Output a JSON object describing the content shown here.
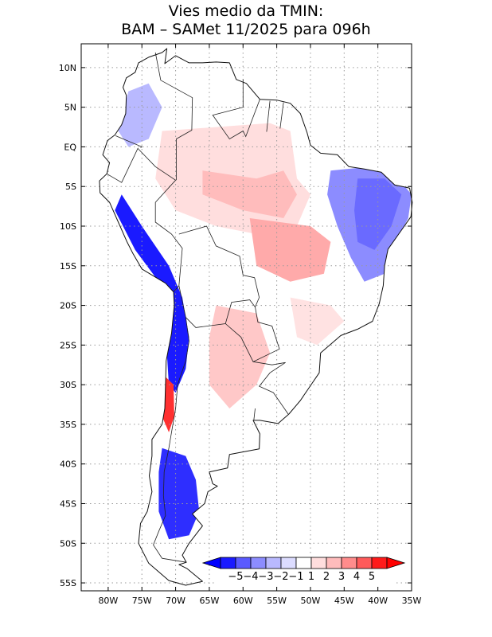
{
  "title": {
    "line1": "Vies medio da TMIN:",
    "line2": "BAM – SAMet 11/2025  para 096h"
  },
  "map": {
    "lon_range": [
      -84,
      -35
    ],
    "lat_range": [
      -56,
      13
    ],
    "x_ticks": [
      {
        "lon": -80,
        "label": "80W"
      },
      {
        "lon": -75,
        "label": "75W"
      },
      {
        "lon": -70,
        "label": "70W"
      },
      {
        "lon": -65,
        "label": "65W"
      },
      {
        "lon": -60,
        "label": "60W"
      },
      {
        "lon": -55,
        "label": "55W"
      },
      {
        "lon": -50,
        "label": "50W"
      },
      {
        "lon": -45,
        "label": "45W"
      },
      {
        "lon": -40,
        "label": "40W"
      },
      {
        "lon": -35,
        "label": "35W"
      }
    ],
    "y_ticks": [
      {
        "lat": 10,
        "label": "10N"
      },
      {
        "lat": 5,
        "label": "5N"
      },
      {
        "lat": 0,
        "label": "EQ"
      },
      {
        "lat": -5,
        "label": "5S"
      },
      {
        "lat": -10,
        "label": "10S"
      },
      {
        "lat": -15,
        "label": "15S"
      },
      {
        "lat": -20,
        "label": "20S"
      },
      {
        "lat": -25,
        "label": "25S"
      },
      {
        "lat": -30,
        "label": "30S"
      },
      {
        "lat": -35,
        "label": "35S"
      },
      {
        "lat": -40,
        "label": "40S"
      },
      {
        "lat": -45,
        "label": "45S"
      },
      {
        "lat": -50,
        "label": "50S"
      },
      {
        "lat": -55,
        "label": "55S"
      }
    ],
    "coastline": [
      [
        -77.3,
        8.7
      ],
      [
        -76.0,
        9.4
      ],
      [
        -75.5,
        10.6
      ],
      [
        -74.0,
        11.3
      ],
      [
        -72.0,
        11.9
      ],
      [
        -71.3,
        12.4
      ],
      [
        -71.6,
        10.5
      ],
      [
        -70.0,
        11.5
      ],
      [
        -68.0,
        10.6
      ],
      [
        -66.0,
        10.6
      ],
      [
        -64.0,
        10.7
      ],
      [
        -62.0,
        10.6
      ],
      [
        -61.0,
        8.5
      ],
      [
        -59.5,
        8.0
      ],
      [
        -57.5,
        6.0
      ],
      [
        -55.0,
        5.9
      ],
      [
        -53.0,
        5.5
      ],
      [
        -51.5,
        4.2
      ],
      [
        -50.5,
        1.8
      ],
      [
        -50.0,
        0.2
      ],
      [
        -48.5,
        -0.8
      ],
      [
        -46.0,
        -1.0
      ],
      [
        -44.3,
        -2.5
      ],
      [
        -42.0,
        -2.8
      ],
      [
        -39.5,
        -3.2
      ],
      [
        -37.5,
        -4.8
      ],
      [
        -35.3,
        -5.2
      ],
      [
        -34.9,
        -7.0
      ],
      [
        -35.1,
        -8.8
      ],
      [
        -36.5,
        -10.5
      ],
      [
        -38.5,
        -12.9
      ],
      [
        -39.0,
        -15.0
      ],
      [
        -39.2,
        -17.5
      ],
      [
        -39.8,
        -19.8
      ],
      [
        -40.8,
        -22.0
      ],
      [
        -43.0,
        -23.0
      ],
      [
        -45.5,
        -23.8
      ],
      [
        -48.5,
        -26.0
      ],
      [
        -48.7,
        -28.5
      ],
      [
        -50.3,
        -30.5
      ],
      [
        -51.5,
        -32.0
      ],
      [
        -53.2,
        -33.7
      ],
      [
        -54.8,
        -34.9
      ],
      [
        -57.5,
        -34.5
      ],
      [
        -58.5,
        -34.5
      ],
      [
        -57.5,
        -36.2
      ],
      [
        -57.6,
        -38.1
      ],
      [
        -62.0,
        -38.8
      ],
      [
        -62.3,
        -40.5
      ],
      [
        -65.0,
        -41.0
      ],
      [
        -64.5,
        -42.5
      ],
      [
        -63.8,
        -42.8
      ],
      [
        -65.2,
        -43.5
      ],
      [
        -65.7,
        -45.0
      ],
      [
        -67.5,
        -46.3
      ],
      [
        -66.0,
        -47.8
      ],
      [
        -68.0,
        -50.0
      ],
      [
        -69.0,
        -51.5
      ],
      [
        -68.4,
        -52.4
      ],
      [
        -69.5,
        -52.7
      ],
      [
        -68.3,
        -53.2
      ],
      [
        -66.0,
        -54.8
      ],
      [
        -68.5,
        -55.3
      ],
      [
        -71.0,
        -54.7
      ],
      [
        -74.0,
        -52.5
      ],
      [
        -75.5,
        -50.0
      ],
      [
        -75.2,
        -47.5
      ],
      [
        -74.2,
        -46.0
      ],
      [
        -73.5,
        -43.5
      ],
      [
        -73.9,
        -41.5
      ],
      [
        -73.5,
        -39.0
      ],
      [
        -73.5,
        -36.9
      ],
      [
        -72.0,
        -35.0
      ],
      [
        -71.6,
        -33.0
      ],
      [
        -71.5,
        -30.0
      ],
      [
        -71.4,
        -27.0
      ],
      [
        -70.6,
        -23.5
      ],
      [
        -70.2,
        -20.0
      ],
      [
        -70.3,
        -18.3
      ],
      [
        -71.5,
        -17.2
      ],
      [
        -75.0,
        -15.4
      ],
      [
        -76.3,
        -13.5
      ],
      [
        -77.2,
        -12.0
      ],
      [
        -78.5,
        -9.5
      ],
      [
        -79.8,
        -7.0
      ],
      [
        -81.2,
        -5.8
      ],
      [
        -81.3,
        -4.3
      ],
      [
        -80.2,
        -3.4
      ],
      [
        -79.8,
        -2.0
      ],
      [
        -80.8,
        -1.0
      ],
      [
        -80.1,
        0.8
      ],
      [
        -79.0,
        1.5
      ],
      [
        -78.0,
        2.8
      ],
      [
        -77.4,
        4.2
      ],
      [
        -77.3,
        6.5
      ],
      [
        -77.8,
        7.5
      ],
      [
        -77.3,
        8.7
      ]
    ],
    "borders": [
      [
        [
          -73.0,
          11.9
        ],
        [
          -72.2,
          8.4
        ],
        [
          -67.5,
          6.2
        ],
        [
          -67.6,
          2.1
        ],
        [
          -69.9,
          1.0
        ],
        [
          -69.9,
          -4.2
        ]
      ],
      [
        [
          -60.0,
          8.5
        ],
        [
          -60.0,
          5.0
        ],
        [
          -64.5,
          4.0
        ],
        [
          -62.0,
          1.0
        ],
        [
          -60.0,
          2.0
        ],
        [
          -59.6,
          1.3
        ],
        [
          -57.5,
          6.0
        ]
      ],
      [
        [
          -56.5,
          1.9
        ],
        [
          -56.0,
          5.8
        ]
      ],
      [
        [
          -54.5,
          2.3
        ],
        [
          -54.0,
          5.6
        ]
      ],
      [
        [
          -78.9,
          1.4
        ],
        [
          -75.0,
          0.0
        ],
        [
          -75.2,
          -0.1
        ]
      ],
      [
        [
          -80.2,
          -3.4
        ],
        [
          -78.0,
          -4.5
        ],
        [
          -75.6,
          -0.2
        ],
        [
          -73.0,
          -2.5
        ],
        [
          -70.0,
          -4.2
        ]
      ],
      [
        [
          -70.0,
          -4.2
        ],
        [
          -73.0,
          -7.0
        ],
        [
          -73.0,
          -9.5
        ],
        [
          -70.6,
          -11.0
        ],
        [
          -69.0,
          -12.8
        ],
        [
          -69.5,
          -17.5
        ],
        [
          -70.3,
          -18.3
        ]
      ],
      [
        [
          -69.5,
          -11.0
        ],
        [
          -65.4,
          -10.0
        ],
        [
          -64.0,
          -12.5
        ],
        [
          -60.5,
          -13.8
        ],
        [
          -60.0,
          -16.2
        ],
        [
          -58.3,
          -16.5
        ],
        [
          -57.6,
          -19.0
        ],
        [
          -58.2,
          -20.2
        ]
      ],
      [
        [
          -69.5,
          -17.5
        ],
        [
          -68.5,
          -21.5
        ],
        [
          -67.0,
          -22.8
        ],
        [
          -62.6,
          -22.3
        ],
        [
          -61.7,
          -19.6
        ],
        [
          -59.0,
          -19.3
        ],
        [
          -58.2,
          -20.2
        ]
      ],
      [
        [
          -58.2,
          -20.2
        ],
        [
          -57.8,
          -22.1
        ],
        [
          -55.7,
          -22.6
        ],
        [
          -54.6,
          -25.5
        ],
        [
          -58.5,
          -27.1
        ],
        [
          -60.3,
          -24.0
        ],
        [
          -62.6,
          -22.3
        ]
      ],
      [
        [
          -68.5,
          -21.5
        ],
        [
          -68.0,
          -24.5
        ],
        [
          -68.5,
          -27.0
        ],
        [
          -69.7,
          -30.0
        ],
        [
          -70.0,
          -33.0
        ],
        [
          -70.5,
          -35.5
        ],
        [
          -71.0,
          -38.0
        ],
        [
          -71.7,
          -41.0
        ],
        [
          -71.8,
          -44.0
        ],
        [
          -71.5,
          -46.5
        ],
        [
          -72.5,
          -48.5
        ],
        [
          -73.3,
          -50.2
        ],
        [
          -72.0,
          -51.9
        ],
        [
          -68.4,
          -52.4
        ]
      ],
      [
        [
          -53.7,
          -27.2
        ],
        [
          -56.0,
          -28.5
        ],
        [
          -57.6,
          -30.2
        ],
        [
          -55.5,
          -31.0
        ],
        [
          -53.3,
          -33.7
        ]
      ],
      [
        [
          -58.5,
          -27.1
        ],
        [
          -55.7,
          -27.5
        ],
        [
          -53.7,
          -27.2
        ]
      ],
      [
        [
          -58.2,
          -33.0
        ],
        [
          -58.4,
          -34.5
        ]
      ]
    ]
  },
  "colorbar": {
    "labels": [
      "−5",
      "−4",
      "−3",
      "−2",
      "−1",
      "1",
      "2",
      "3",
      "4",
      "5"
    ],
    "colors": [
      "#1a1aff",
      "#5a5aff",
      "#8c8cff",
      "#b9b9ff",
      "#dcdcff",
      "#ffffff",
      "#ffdede",
      "#ffbcbc",
      "#ff8c8c",
      "#ff5a5a",
      "#ff1a1a"
    ],
    "arrow_left_color": "#0000ff",
    "arrow_right_color": "#ff0000"
  },
  "bias_regions": [
    {
      "name": "amazon-warm",
      "value": 1.5,
      "color": "#ffdede",
      "polygon": [
        [
          -72,
          2
        ],
        [
          -56,
          3
        ],
        [
          -53,
          2
        ],
        [
          -52,
          -4
        ],
        [
          -50,
          -6
        ],
        [
          -52,
          -10
        ],
        [
          -58,
          -11
        ],
        [
          -64,
          -10
        ],
        [
          -70,
          -8
        ],
        [
          -73,
          -4
        ],
        [
          -72,
          2
        ]
      ]
    },
    {
      "name": "central-brazil-warm",
      "value": 2.5,
      "color": "#ffbcbc",
      "polygon": [
        [
          -66,
          -3
        ],
        [
          -58,
          -4
        ],
        [
          -54,
          -3
        ],
        [
          -52,
          -6
        ],
        [
          -54,
          -9
        ],
        [
          -60,
          -8
        ],
        [
          -66,
          -6
        ],
        [
          -66,
          -3
        ]
      ]
    },
    {
      "name": "mato-grosso-warm",
      "value": 3.0,
      "color": "#ffaaaa",
      "polygon": [
        [
          -59,
          -9
        ],
        [
          -50,
          -10
        ],
        [
          -47,
          -12
        ],
        [
          -48,
          -16
        ],
        [
          -53,
          -17
        ],
        [
          -58,
          -15
        ],
        [
          -59,
          -9
        ]
      ]
    },
    {
      "name": "northeast-cold",
      "value": -3.0,
      "color": "#8c8cff",
      "polygon": [
        [
          -47,
          -3
        ],
        [
          -41,
          -2.5
        ],
        [
          -37,
          -4
        ],
        [
          -35,
          -6
        ],
        [
          -35.5,
          -9
        ],
        [
          -38,
          -13
        ],
        [
          -39,
          -16
        ],
        [
          -42,
          -17
        ],
        [
          -44,
          -14
        ],
        [
          -46,
          -10
        ],
        [
          -47.5,
          -6
        ],
        [
          -47,
          -3
        ]
      ]
    },
    {
      "name": "northeast-deep-cold",
      "value": -4.0,
      "color": "#6a6aff",
      "polygon": [
        [
          -43,
          -4
        ],
        [
          -39,
          -4
        ],
        [
          -36.5,
          -6
        ],
        [
          -38,
          -10
        ],
        [
          -40.5,
          -13
        ],
        [
          -43,
          -12
        ],
        [
          -43.5,
          -8
        ],
        [
          -43,
          -4
        ]
      ]
    },
    {
      "name": "chaco-warm",
      "value": 2.0,
      "color": "#ffc8c8",
      "polygon": [
        [
          -64,
          -20
        ],
        [
          -58,
          -21
        ],
        [
          -56,
          -26
        ],
        [
          -58,
          -30
        ],
        [
          -62,
          -33
        ],
        [
          -65,
          -30
        ],
        [
          -65,
          -24
        ],
        [
          -64,
          -20
        ]
      ]
    },
    {
      "name": "andes-cold",
      "value": -5.0,
      "color": "#1a1aff",
      "polygon": [
        [
          -78,
          -6
        ],
        [
          -75,
          -10
        ],
        [
          -71,
          -15
        ],
        [
          -69,
          -19
        ],
        [
          -68,
          -24
        ],
        [
          -68.5,
          -28
        ],
        [
          -70,
          -31
        ],
        [
          -71,
          -30
        ],
        [
          -71.3,
          -26
        ],
        [
          -70.8,
          -21
        ],
        [
          -72.5,
          -17
        ],
        [
          -76,
          -13
        ],
        [
          -79,
          -8
        ],
        [
          -78,
          -6
        ]
      ]
    },
    {
      "name": "central-chile-warm",
      "value": 4.5,
      "color": "#ff3030",
      "polygon": [
        [
          -71.5,
          -29
        ],
        [
          -70.3,
          -30
        ],
        [
          -70.2,
          -34
        ],
        [
          -71,
          -36
        ],
        [
          -72,
          -34
        ],
        [
          -71.5,
          -29
        ]
      ]
    },
    {
      "name": "patagonia-cold",
      "value": -4.5,
      "color": "#2e2eff",
      "polygon": [
        [
          -72,
          -38
        ],
        [
          -68.5,
          -39
        ],
        [
          -67,
          -42
        ],
        [
          -66.5,
          -46
        ],
        [
          -68,
          -49
        ],
        [
          -71,
          -49.5
        ],
        [
          -72.5,
          -46
        ],
        [
          -72.5,
          -41
        ],
        [
          -72,
          -38
        ]
      ]
    },
    {
      "name": "colombia-cold",
      "value": -2.0,
      "color": "#b9b9ff",
      "polygon": [
        [
          -77,
          7
        ],
        [
          -74,
          8
        ],
        [
          -72,
          5
        ],
        [
          -74,
          1
        ],
        [
          -77,
          0
        ],
        [
          -78.5,
          2
        ],
        [
          -77,
          7
        ]
      ]
    },
    {
      "name": "southeast-brazil-warm",
      "value": 1.5,
      "color": "#ffe2e2",
      "polygon": [
        [
          -53,
          -19
        ],
        [
          -47,
          -20
        ],
        [
          -45,
          -22
        ],
        [
          -49,
          -25
        ],
        [
          -52,
          -24
        ],
        [
          -53,
          -19
        ]
      ]
    }
  ]
}
